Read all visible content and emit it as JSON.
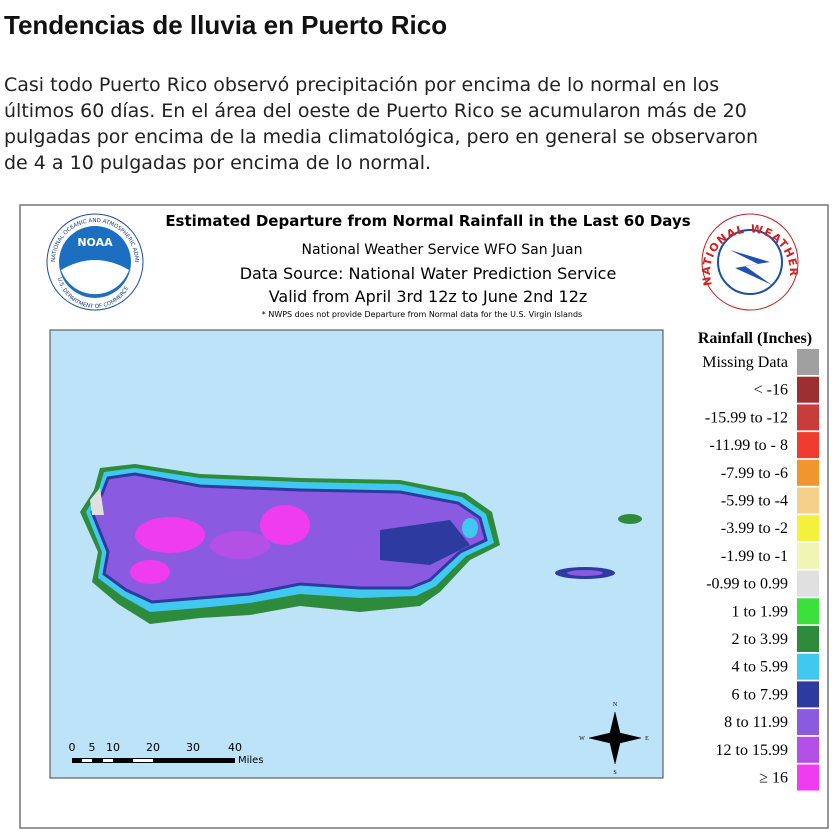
{
  "header": {
    "title": "Tendencias de lluvia en Puerto Rico"
  },
  "paragraph": {
    "lines": [
      "Casi todo Puerto Rico observó precipitación por encima de lo normal en los",
      "últimos 60 días. En el área del oeste de Puerto Rico se acumularon más de 20",
      "pulgadas por encima de la media climatológica, pero en general se observaron",
      "de 4 a 10 pulgadas por encima de lo normal."
    ]
  },
  "map": {
    "title": "Estimated Departure from Normal Rainfall in the Last 60 Days",
    "subtitle_lines": [
      "National Weather Service WFO San Juan",
      "Data Source: National Water Prediction Service",
      "Valid from April 3rd 12z to June 2nd 12z"
    ],
    "footnote": "* NWPS does not provide Departure from Normal data for the U.S. Virgin Islands",
    "noaa_logo": {
      "label": "NOAA",
      "ring_top": "NATIONAL OCEANIC AND ATMOSPHERIC ADMINISTRATION",
      "ring_bottom": "U.S. DEPARTMENT OF COMMERCE"
    },
    "nws_logo": {
      "ring": "NATIONAL WEATHER SERVICE"
    },
    "legend": {
      "title": "Rainfall (Inches)",
      "items": [
        {
          "label": "Missing Data",
          "color": "#a0a0a0"
        },
        {
          "label": "< -16",
          "color": "#9c3030"
        },
        {
          "label": "-15.99 to -12",
          "color": "#c83c3c"
        },
        {
          "label": "-11.99 to - 8",
          "color": "#f03c2e"
        },
        {
          "label": "-7.99 to  -6",
          "color": "#f0962c"
        },
        {
          "label": "-5.99 to -4",
          "color": "#f5d08a"
        },
        {
          "label": "-3.99 to -2",
          "color": "#f5f03c"
        },
        {
          "label": "-1.99 to  -1",
          "color": "#f0f5b4"
        },
        {
          "label": "-0.99 to 0.99",
          "color": "#e0e0e0"
        },
        {
          "label": "1 to 1.99",
          "color": "#3ce03c"
        },
        {
          "label": "2 to 3.99",
          "color": "#2e8b3c"
        },
        {
          "label": "4 to 5.99",
          "color": "#40c8f0"
        },
        {
          "label": "6 to 7.99",
          "color": "#2d3aa0"
        },
        {
          "label": "8 to 11.99",
          "color": "#8a5ae0"
        },
        {
          "label": "12 to 15.99",
          "color": "#b450e6"
        },
        {
          "label": "≥ 16",
          "color": "#f03cf0"
        }
      ]
    },
    "scale": {
      "labels": [
        "0",
        "5",
        "10",
        "20",
        "30",
        "40"
      ],
      "unit": "Miles"
    },
    "compass": {
      "n": "N",
      "e": "E",
      "s": "S",
      "w": "W"
    }
  }
}
